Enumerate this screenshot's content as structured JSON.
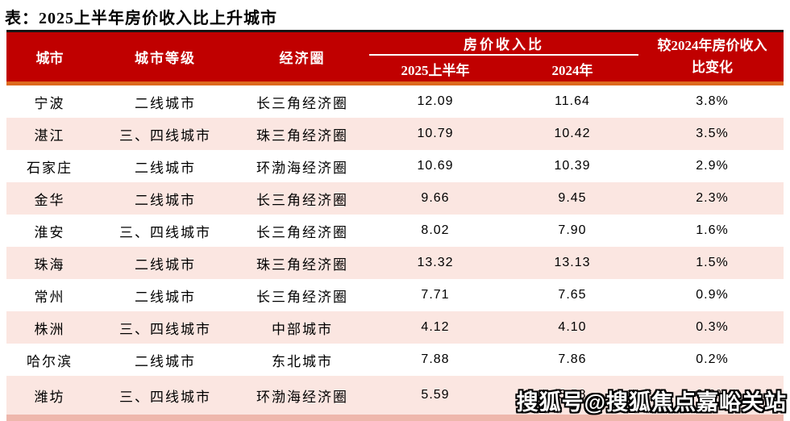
{
  "title": "表：2025上半年房价收入比上升城市",
  "colors": {
    "header_red": "#C00000",
    "orange_divider": "#DD6A1E",
    "row_pink": "#FBE6E1",
    "top_border_black": "#161616"
  },
  "table": {
    "headers": {
      "city": "城市",
      "tier": "城市等级",
      "circle": "经济圈",
      "ratio_group": "房价收入比",
      "h2025": "2025上半年",
      "h2024": "2024年",
      "change_line1": "较2024年房价收入",
      "change_line2": "比变化"
    },
    "rows": [
      {
        "city": "宁波",
        "tier": "二线城市",
        "circle": "长三角经济圈",
        "v2025": "12.09",
        "v2024": "11.64",
        "change": "3.8%"
      },
      {
        "city": "湛江",
        "tier": "三、四线城市",
        "circle": "珠三角经济圈",
        "v2025": "10.79",
        "v2024": "10.42",
        "change": "3.5%"
      },
      {
        "city": "石家庄",
        "tier": "二线城市",
        "circle": "环渤海经济圈",
        "v2025": "10.69",
        "v2024": "10.39",
        "change": "2.9%"
      },
      {
        "city": "金华",
        "tier": "二线城市",
        "circle": "长三角经济圈",
        "v2025": "9.66",
        "v2024": "9.45",
        "change": "2.3%"
      },
      {
        "city": "淮安",
        "tier": "三、四线城市",
        "circle": "长三角经济圈",
        "v2025": "8.02",
        "v2024": "7.90",
        "change": "1.6%"
      },
      {
        "city": "珠海",
        "tier": "二线城市",
        "circle": "珠三角经济圈",
        "v2025": "13.32",
        "v2024": "13.13",
        "change": "1.5%"
      },
      {
        "city": "常州",
        "tier": "二线城市",
        "circle": "长三角经济圈",
        "v2025": "7.71",
        "v2024": "7.65",
        "change": "0.9%"
      },
      {
        "city": "株洲",
        "tier": "三、四线城市",
        "circle": "中部城市",
        "v2025": "4.12",
        "v2024": "4.10",
        "change": "0.3%"
      },
      {
        "city": "哈尔滨",
        "tier": "二线城市",
        "circle": "东北城市",
        "v2025": "7.88",
        "v2024": "7.86",
        "change": "0.2%"
      },
      {
        "city": "潍坊",
        "tier": "三、四线城市",
        "circle": "环渤海经济圈",
        "v2025": "5.59",
        "v2024": "5.58",
        "change": "0.2%"
      }
    ]
  },
  "watermark": "搜狐号@搜狐焦点嘉峪关站"
}
